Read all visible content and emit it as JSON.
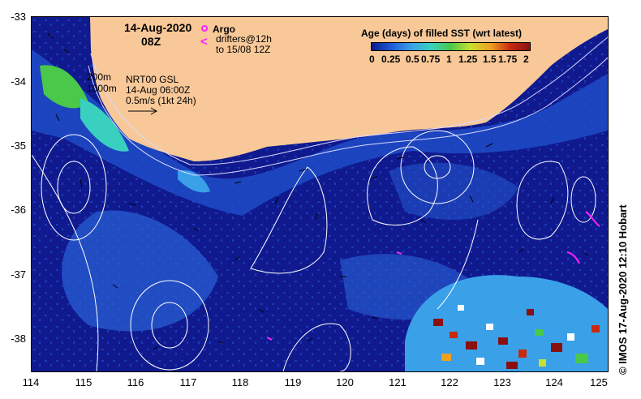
{
  "map": {
    "date": "14-Aug-2020",
    "time": "08Z",
    "argo_label": "Argo",
    "drifters_label": "drifters@12h",
    "drifters_range": "to 15/08 12Z",
    "contour_200": "200m",
    "contour_1000": "1000m",
    "product": "NRT00 GSL",
    "product_time": "14-Aug 06:00Z",
    "velocity_scale": "0.5m/s (1kt 24h)",
    "credit": "© IMOS 17-Aug-2020 12:10 Hobart"
  },
  "legend": {
    "title": "Age (days) of filled SST (wrt latest)",
    "ticks": [
      "0",
      "0.25",
      "0.5",
      "0.75",
      "1",
      "1.25",
      "1.5",
      "1.75",
      "2"
    ],
    "colors": [
      "#0a1a8a",
      "#1e5ad8",
      "#3aa0e8",
      "#3ad0c0",
      "#4ac84a",
      "#c8e030",
      "#f0a020",
      "#c82a10",
      "#8a1010"
    ]
  },
  "axes": {
    "lon_ticks": [
      "114",
      "115",
      "116",
      "117",
      "118",
      "119",
      "120",
      "121",
      "122",
      "123",
      "124",
      "125"
    ],
    "lat_ticks": [
      "-33",
      "-34",
      "-35",
      "-36",
      "-37",
      "-38"
    ]
  },
  "colors": {
    "land": "#f8c898",
    "ocean_deep": "#101a8e",
    "ocean_mid": "#1e4cc8",
    "ocean_light": "#2f78e0",
    "marker": "#ff22ff"
  }
}
